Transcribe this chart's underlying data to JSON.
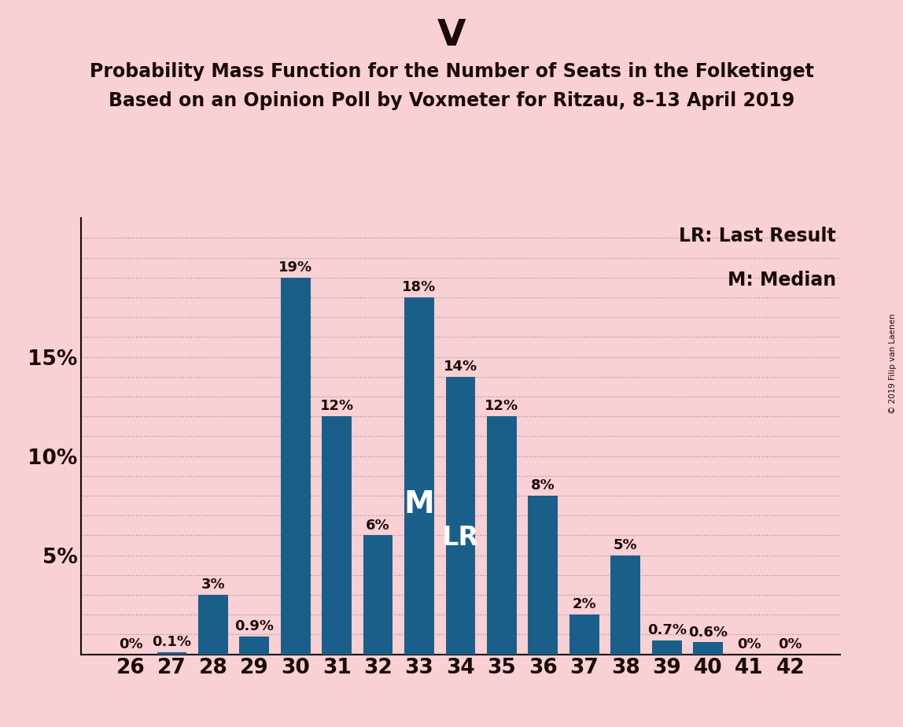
{
  "title_top": "V",
  "title_line1": "Probability Mass Function for the Number of Seats in the Folketinget",
  "title_line2": "Based on an Opinion Poll by Voxmeter for Ritzau, 8–13 April 2019",
  "categories": [
    26,
    27,
    28,
    29,
    30,
    31,
    32,
    33,
    34,
    35,
    36,
    37,
    38,
    39,
    40,
    41,
    42
  ],
  "values": [
    0.0,
    0.1,
    3.0,
    0.9,
    19.0,
    12.0,
    6.0,
    18.0,
    14.0,
    12.0,
    8.0,
    2.0,
    5.0,
    0.7,
    0.6,
    0.0,
    0.0
  ],
  "labels": [
    "0%",
    "0.1%",
    "3%",
    "0.9%",
    "19%",
    "12%",
    "6%",
    "18%",
    "14%",
    "12%",
    "8%",
    "2%",
    "5%",
    "0.7%",
    "0.6%",
    "0%",
    "0%"
  ],
  "bar_color": "#1a5f8a",
  "background_color": "#f9d0d4",
  "text_color": "#1a0a0a",
  "yticks": [
    5,
    10,
    15
  ],
  "ylim": [
    0,
    22
  ],
  "legend_lr": "LR: Last Result",
  "legend_m": "M: Median",
  "median_bar": 33,
  "lr_bar": 34,
  "watermark": "© 2019 Filip van Laenen",
  "grid_color": "#999999",
  "label_fontsize": 13,
  "tick_fontsize": 19,
  "title_fontsize_main": 34,
  "title_fontsize_sub": 17,
  "legend_fontsize": 17,
  "m_fontsize": 28,
  "lr_fontsize": 24
}
